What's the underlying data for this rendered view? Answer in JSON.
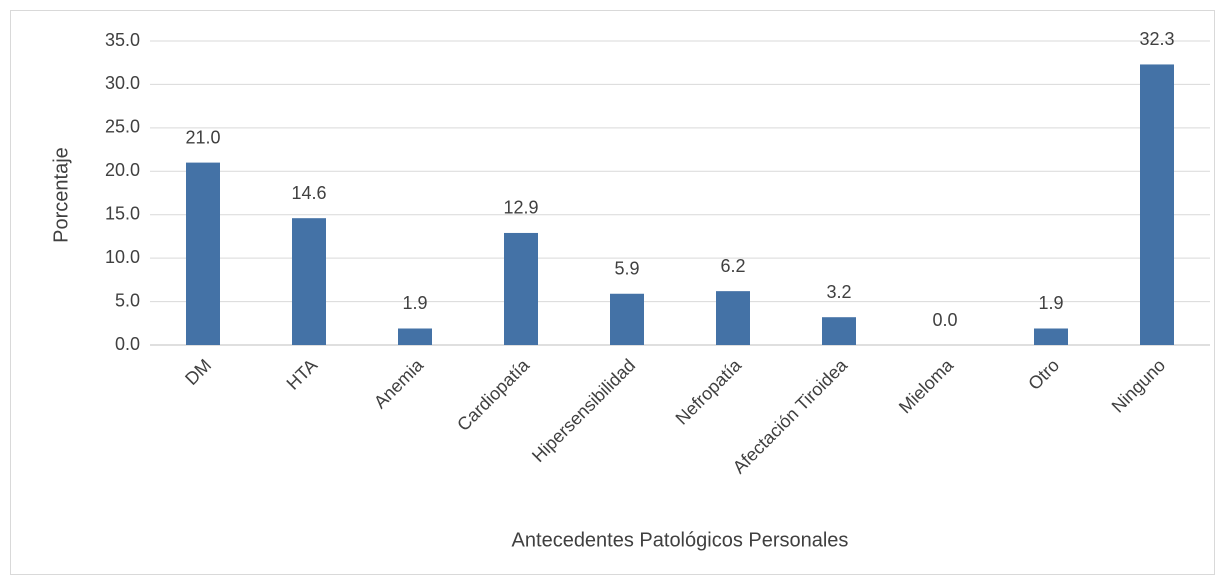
{
  "chart_data": {
    "type": "bar",
    "x_label": "Antecedentes Patológicos Personales",
    "y_label": "Porcentaje",
    "categories": [
      "DM",
      "HTA",
      "Anemia",
      "Cardiopatía",
      "Hipersensibilidad",
      "Nefropatía",
      "Afectación Tiroidea",
      "Mieloma",
      "Otro",
      "Ninguno"
    ],
    "values": [
      21.0,
      14.6,
      1.9,
      12.9,
      5.9,
      6.2,
      3.2,
      0.0,
      1.9,
      32.3
    ],
    "value_labels": [
      "21.0",
      "14.6",
      "1.9",
      "12.9",
      "5.9",
      "6.2",
      "3.2",
      "0.0",
      "1.9",
      "32.3"
    ],
    "color": "#4472a6",
    "ylim": [
      0,
      35
    ],
    "yticks": [
      {
        "value": 0,
        "label": "0.0"
      },
      {
        "value": 5,
        "label": "5.0"
      },
      {
        "value": 10,
        "label": "10.0"
      },
      {
        "value": 15,
        "label": "15.0"
      },
      {
        "value": 20,
        "label": "20.0"
      },
      {
        "value": 25,
        "label": "25.0"
      },
      {
        "value": 30,
        "label": "30.0"
      },
      {
        "value": 35,
        "label": "35.0"
      }
    ],
    "grid": true
  }
}
